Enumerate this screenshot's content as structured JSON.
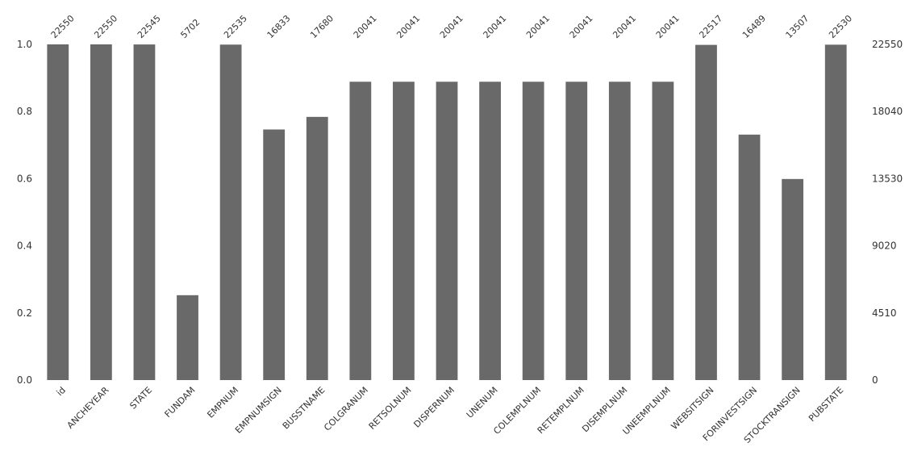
{
  "chart_data": {
    "type": "bar",
    "title": "",
    "xlabel": "",
    "ylabel": "",
    "ylim": [
      0,
      1.0
    ],
    "bar_color": "#696969",
    "left_ticks": [
      "0.0",
      "0.2",
      "0.4",
      "0.6",
      "0.8",
      "1.0"
    ],
    "left_tick_values": [
      0.0,
      0.2,
      0.4,
      0.6,
      0.8,
      1.0
    ],
    "right_ticks": [
      "0",
      "4510",
      "9020",
      "13530",
      "18040",
      "22550"
    ],
    "categories": [
      "id",
      "ANCHEYEAR",
      "STATE",
      "FUNDAM",
      "EMPNUM",
      "EMPNUMSIGN",
      "BUSSTNAME",
      "COLGRANUM",
      "RETSOLNUM",
      "DISPERNUM",
      "UNENUM",
      "COLEMPLNUM",
      "RETEMPLNUM",
      "DISEMPLNUM",
      "UNEEMPLNUM",
      "WEBSITSIGN",
      "FORINVESTSIGN",
      "STOCKTRANSIGN",
      "PUBSTATE"
    ],
    "counts": [
      22550,
      22550,
      22545,
      5702,
      22535,
      16833,
      17680,
      20041,
      20041,
      20041,
      20041,
      20041,
      20041,
      20041,
      20041,
      22517,
      16489,
      13507,
      22530
    ],
    "count_labels": [
      "22550",
      "22550",
      "22545",
      "5702",
      "22535",
      "16833",
      "17680",
      "20041",
      "20041",
      "20041",
      "20041",
      "20041",
      "20041",
      "20041",
      "20041",
      "22517",
      "16489",
      "13507",
      "22530"
    ],
    "total": 22550
  }
}
